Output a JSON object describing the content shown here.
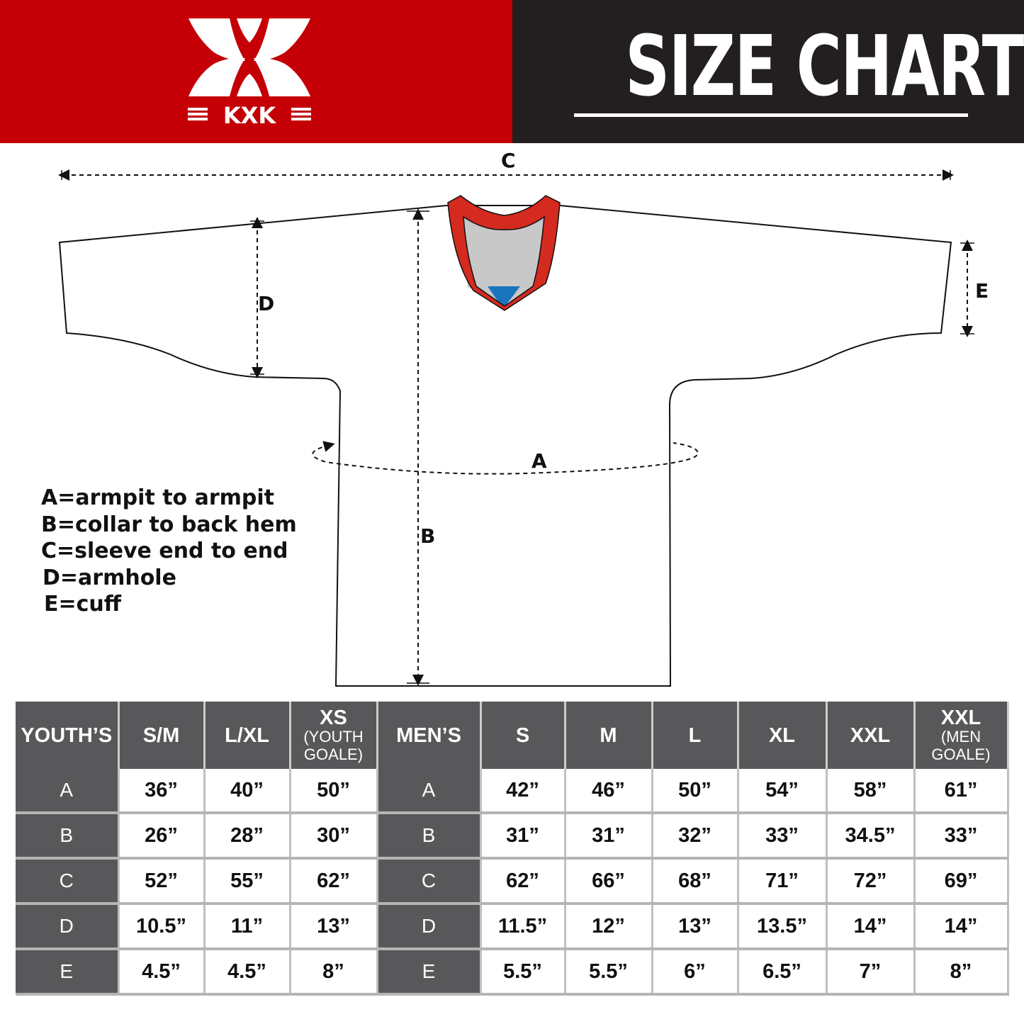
{
  "header": {
    "brand": "KXK",
    "title": "SIZE CHART",
    "colors": {
      "brand_red": "#c40006",
      "dark": "#231f20",
      "table_header": "#58585a"
    }
  },
  "diagram": {
    "labels": {
      "A": "A",
      "B": "B",
      "C": "C",
      "D": "D",
      "E": "E"
    },
    "legend": [
      "A=armpit to armpit",
      "B=collar to back hem",
      "C=sleeve end to end",
      "D=armhole",
      "E=cuff"
    ]
  },
  "table": {
    "youth": {
      "group_label": "YOUTH’S",
      "columns": [
        {
          "label": "S/M"
        },
        {
          "label": "L/XL"
        },
        {
          "label": "XS",
          "sub": "(YOUTH GOALE)"
        }
      ]
    },
    "men": {
      "group_label": "MEN’S",
      "columns": [
        {
          "label": "S"
        },
        {
          "label": "M"
        },
        {
          "label": "L"
        },
        {
          "label": "XL"
        },
        {
          "label": "XXL"
        },
        {
          "label": "XXL",
          "sub": "(MEN GOALE)"
        }
      ]
    },
    "rows": [
      {
        "key": "A",
        "youth": [
          "36”",
          "40”",
          "50”"
        ],
        "men": [
          "42”",
          "46”",
          "50”",
          "54”",
          "58”",
          "61”"
        ]
      },
      {
        "key": "B",
        "youth": [
          "26”",
          "28”",
          "30”"
        ],
        "men": [
          "31”",
          "31”",
          "32”",
          "33”",
          "34.5”",
          "33”"
        ]
      },
      {
        "key": "C",
        "youth": [
          "52”",
          "55”",
          "62”"
        ],
        "men": [
          "62”",
          "66”",
          "68”",
          "71”",
          "72”",
          "69”"
        ]
      },
      {
        "key": "D",
        "youth": [
          "10.5”",
          "11”",
          "13”"
        ],
        "men": [
          "11.5”",
          "12”",
          "13”",
          "13.5”",
          "14”",
          "14”"
        ]
      },
      {
        "key": "E",
        "youth": [
          "4.5”",
          "4.5”",
          "8”"
        ],
        "men": [
          "5.5”",
          "5.5”",
          "6”",
          "6.5”",
          "7”",
          "8”"
        ]
      }
    ]
  }
}
